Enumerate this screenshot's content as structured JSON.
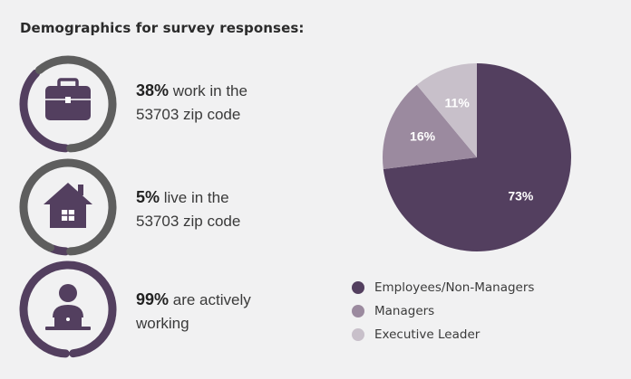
{
  "title": "Demographics for survey responses:",
  "stats": [
    {
      "pct": "38%",
      "line1": " work in the",
      "line2": "53703 zip code",
      "icon": "briefcase-icon",
      "ring_value": 0.38
    },
    {
      "pct": "5%",
      "line1": " live in the",
      "line2": "53703 zip code",
      "icon": "house-icon",
      "ring_value": 0.05
    },
    {
      "pct": "99%",
      "line1": " are actively",
      "line2": "working",
      "icon": "person-laptop-icon",
      "ring_value": 0.99
    }
  ],
  "colors": {
    "primary": "#533f5f",
    "ring_gray": "#5e5e5e",
    "managers": "#9b8a9f",
    "executive": "#c8c0ca",
    "background": "#f1f1f2"
  },
  "chart_data": {
    "type": "pie",
    "categories": [
      "Employees/Non-Managers",
      "Managers",
      "Executive Leader"
    ],
    "values": [
      73,
      16,
      11
    ],
    "labels": [
      "73%",
      "16%",
      "11%"
    ],
    "colors": [
      "#533f5f",
      "#9b8a9f",
      "#c8c0ca"
    ],
    "legend_position": "bottom"
  }
}
